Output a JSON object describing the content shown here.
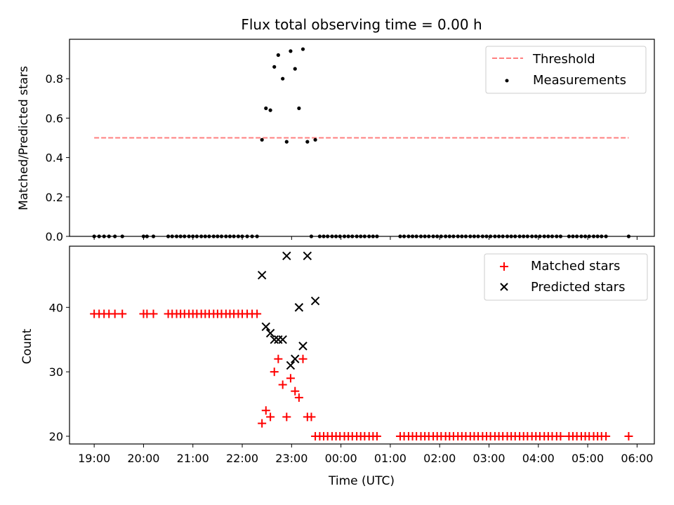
{
  "chart_data": [
    {
      "type": "scatter",
      "title": "Flux total observing time = 0.00 h",
      "ylabel": "Matched/Predicted stars",
      "xlabel": "",
      "x_unit": "hours since 19:00 UTC",
      "xlim": [
        -0.5,
        11.35
      ],
      "ylim": [
        0,
        1.0
      ],
      "yticks": [
        0.0,
        0.2,
        0.4,
        0.6,
        0.8
      ],
      "ytick_labels": [
        "0.0",
        "0.2",
        "0.4",
        "0.6",
        "0.8"
      ],
      "legend": {
        "placement": "top-right",
        "entries": [
          "Threshold",
          "Measurements"
        ]
      },
      "colors": {
        "threshold": "#ff7f7f",
        "measurements": "#000000"
      },
      "threshold": {
        "name": "Threshold",
        "y": 0.5,
        "x_range": [
          0.0,
          10.83
        ]
      },
      "series": [
        {
          "name": "Measurements",
          "points": [
            [
              0.0,
              0
            ],
            [
              0.1,
              0
            ],
            [
              0.2,
              0
            ],
            [
              0.3,
              0
            ],
            [
              0.42,
              0
            ],
            [
              0.57,
              0
            ],
            [
              1.0,
              0
            ],
            [
              1.07,
              0
            ],
            [
              1.2,
              0
            ],
            [
              1.5,
              0
            ],
            [
              1.58,
              0
            ],
            [
              1.67,
              0
            ],
            [
              1.75,
              0
            ],
            [
              1.83,
              0
            ],
            [
              1.92,
              0
            ],
            [
              2.0,
              0
            ],
            [
              2.08,
              0
            ],
            [
              2.17,
              0
            ],
            [
              2.25,
              0
            ],
            [
              2.33,
              0
            ],
            [
              2.42,
              0
            ],
            [
              2.5,
              0
            ],
            [
              2.58,
              0
            ],
            [
              2.67,
              0
            ],
            [
              2.75,
              0
            ],
            [
              2.83,
              0
            ],
            [
              2.92,
              0
            ],
            [
              3.0,
              0
            ],
            [
              3.1,
              0
            ],
            [
              3.2,
              0
            ],
            [
              3.3,
              0
            ],
            [
              3.4,
              0.49
            ],
            [
              3.48,
              0.65
            ],
            [
              3.57,
              0.64
            ],
            [
              3.65,
              0.86
            ],
            [
              3.73,
              0.92
            ],
            [
              3.82,
              0.8
            ],
            [
              3.9,
              0.48
            ],
            [
              3.98,
              0.94
            ],
            [
              4.07,
              0.85
            ],
            [
              4.15,
              0.65
            ],
            [
              4.23,
              0.95
            ],
            [
              4.32,
              0.48
            ],
            [
              4.4,
              0.0
            ],
            [
              4.48,
              0.49
            ],
            [
              4.57,
              0
            ],
            [
              4.65,
              0
            ],
            [
              4.73,
              0
            ],
            [
              4.82,
              0
            ],
            [
              4.9,
              0
            ],
            [
              4.98,
              0
            ],
            [
              5.07,
              0
            ],
            [
              5.15,
              0
            ],
            [
              5.23,
              0
            ],
            [
              5.32,
              0
            ],
            [
              5.4,
              0
            ],
            [
              5.48,
              0
            ],
            [
              5.57,
              0
            ],
            [
              5.65,
              0
            ],
            [
              5.73,
              0
            ],
            [
              6.2,
              0
            ],
            [
              6.28,
              0
            ],
            [
              6.37,
              0
            ],
            [
              6.45,
              0
            ],
            [
              6.53,
              0
            ],
            [
              6.62,
              0
            ],
            [
              6.7,
              0
            ],
            [
              6.78,
              0
            ],
            [
              6.87,
              0
            ],
            [
              6.95,
              0
            ],
            [
              7.03,
              0
            ],
            [
              7.12,
              0
            ],
            [
              7.2,
              0
            ],
            [
              7.28,
              0
            ],
            [
              7.37,
              0
            ],
            [
              7.45,
              0
            ],
            [
              7.53,
              0
            ],
            [
              7.62,
              0
            ],
            [
              7.7,
              0
            ],
            [
              7.78,
              0
            ],
            [
              7.87,
              0
            ],
            [
              7.95,
              0
            ],
            [
              8.03,
              0
            ],
            [
              8.12,
              0
            ],
            [
              8.2,
              0
            ],
            [
              8.28,
              0
            ],
            [
              8.37,
              0
            ],
            [
              8.45,
              0
            ],
            [
              8.53,
              0
            ],
            [
              8.62,
              0
            ],
            [
              8.7,
              0
            ],
            [
              8.78,
              0
            ],
            [
              8.87,
              0
            ],
            [
              8.95,
              0
            ],
            [
              9.03,
              0
            ],
            [
              9.12,
              0
            ],
            [
              9.2,
              0
            ],
            [
              9.28,
              0
            ],
            [
              9.37,
              0
            ],
            [
              9.45,
              0
            ],
            [
              9.62,
              0
            ],
            [
              9.7,
              0
            ],
            [
              9.78,
              0
            ],
            [
              9.87,
              0
            ],
            [
              9.95,
              0
            ],
            [
              10.03,
              0
            ],
            [
              10.12,
              0
            ],
            [
              10.2,
              0
            ],
            [
              10.28,
              0
            ],
            [
              10.37,
              0
            ],
            [
              10.83,
              0
            ]
          ]
        }
      ]
    },
    {
      "type": "scatter",
      "title": "",
      "ylabel": "Count",
      "xlabel": "Time (UTC)",
      "x_unit": "hours since 19:00 UTC",
      "xlim": [
        -0.5,
        11.35
      ],
      "ylim": [
        18.8,
        49.5
      ],
      "yticks": [
        20,
        30,
        40
      ],
      "ytick_labels": [
        "20",
        "30",
        "40"
      ],
      "xticks": [
        0,
        1,
        2,
        3,
        4,
        5,
        6,
        7,
        8,
        9,
        10,
        11
      ],
      "xtick_labels": [
        "19:00",
        "20:00",
        "21:00",
        "22:00",
        "23:00",
        "00:00",
        "01:00",
        "02:00",
        "03:00",
        "04:00",
        "05:00",
        "06:00"
      ],
      "legend": {
        "placement": "top-right",
        "entries": [
          "Matched stars",
          "Predicted stars"
        ]
      },
      "colors": {
        "matched": "#ff0000",
        "predicted": "#000000"
      },
      "series": [
        {
          "name": "Matched stars",
          "points": [
            [
              0.0,
              39
            ],
            [
              0.1,
              39
            ],
            [
              0.2,
              39
            ],
            [
              0.3,
              39
            ],
            [
              0.42,
              39
            ],
            [
              0.57,
              39
            ],
            [
              1.0,
              39
            ],
            [
              1.07,
              39
            ],
            [
              1.2,
              39
            ],
            [
              1.5,
              39
            ],
            [
              1.58,
              39
            ],
            [
              1.67,
              39
            ],
            [
              1.75,
              39
            ],
            [
              1.83,
              39
            ],
            [
              1.92,
              39
            ],
            [
              2.0,
              39
            ],
            [
              2.08,
              39
            ],
            [
              2.17,
              39
            ],
            [
              2.25,
              39
            ],
            [
              2.33,
              39
            ],
            [
              2.42,
              39
            ],
            [
              2.5,
              39
            ],
            [
              2.58,
              39
            ],
            [
              2.67,
              39
            ],
            [
              2.75,
              39
            ],
            [
              2.83,
              39
            ],
            [
              2.92,
              39
            ],
            [
              3.0,
              39
            ],
            [
              3.1,
              39
            ],
            [
              3.2,
              39
            ],
            [
              3.3,
              39
            ],
            [
              3.4,
              22
            ],
            [
              3.48,
              24
            ],
            [
              3.57,
              23
            ],
            [
              3.65,
              30
            ],
            [
              3.73,
              32
            ],
            [
              3.82,
              28
            ],
            [
              3.9,
              23
            ],
            [
              3.98,
              29
            ],
            [
              4.07,
              27
            ],
            [
              4.15,
              26
            ],
            [
              4.23,
              32
            ],
            [
              4.32,
              23
            ],
            [
              4.4,
              23
            ],
            [
              4.48,
              20
            ],
            [
              4.57,
              20
            ],
            [
              4.65,
              20
            ],
            [
              4.73,
              20
            ],
            [
              4.82,
              20
            ],
            [
              4.9,
              20
            ],
            [
              4.98,
              20
            ],
            [
              5.07,
              20
            ],
            [
              5.15,
              20
            ],
            [
              5.23,
              20
            ],
            [
              5.32,
              20
            ],
            [
              5.4,
              20
            ],
            [
              5.48,
              20
            ],
            [
              5.57,
              20
            ],
            [
              5.65,
              20
            ],
            [
              5.73,
              20
            ],
            [
              6.2,
              20
            ],
            [
              6.28,
              20
            ],
            [
              6.37,
              20
            ],
            [
              6.45,
              20
            ],
            [
              6.53,
              20
            ],
            [
              6.62,
              20
            ],
            [
              6.7,
              20
            ],
            [
              6.78,
              20
            ],
            [
              6.87,
              20
            ],
            [
              6.95,
              20
            ],
            [
              7.03,
              20
            ],
            [
              7.12,
              20
            ],
            [
              7.2,
              20
            ],
            [
              7.28,
              20
            ],
            [
              7.37,
              20
            ],
            [
              7.45,
              20
            ],
            [
              7.53,
              20
            ],
            [
              7.62,
              20
            ],
            [
              7.7,
              20
            ],
            [
              7.78,
              20
            ],
            [
              7.87,
              20
            ],
            [
              7.95,
              20
            ],
            [
              8.03,
              20
            ],
            [
              8.12,
              20
            ],
            [
              8.2,
              20
            ],
            [
              8.28,
              20
            ],
            [
              8.37,
              20
            ],
            [
              8.45,
              20
            ],
            [
              8.53,
              20
            ],
            [
              8.62,
              20
            ],
            [
              8.7,
              20
            ],
            [
              8.78,
              20
            ],
            [
              8.87,
              20
            ],
            [
              8.95,
              20
            ],
            [
              9.03,
              20
            ],
            [
              9.12,
              20
            ],
            [
              9.2,
              20
            ],
            [
              9.28,
              20
            ],
            [
              9.37,
              20
            ],
            [
              9.45,
              20
            ],
            [
              9.62,
              20
            ],
            [
              9.7,
              20
            ],
            [
              9.78,
              20
            ],
            [
              9.87,
              20
            ],
            [
              9.95,
              20
            ],
            [
              10.03,
              20
            ],
            [
              10.12,
              20
            ],
            [
              10.2,
              20
            ],
            [
              10.28,
              20
            ],
            [
              10.37,
              20
            ],
            [
              10.83,
              20
            ]
          ]
        },
        {
          "name": "Predicted stars",
          "points": [
            [
              3.4,
              45
            ],
            [
              3.48,
              37
            ],
            [
              3.57,
              36
            ],
            [
              3.65,
              35
            ],
            [
              3.73,
              35
            ],
            [
              3.82,
              35
            ],
            [
              3.9,
              48
            ],
            [
              3.98,
              31
            ],
            [
              4.07,
              32
            ],
            [
              4.15,
              40
            ],
            [
              4.23,
              34
            ],
            [
              4.32,
              48
            ],
            [
              4.48,
              41
            ]
          ]
        }
      ]
    }
  ]
}
